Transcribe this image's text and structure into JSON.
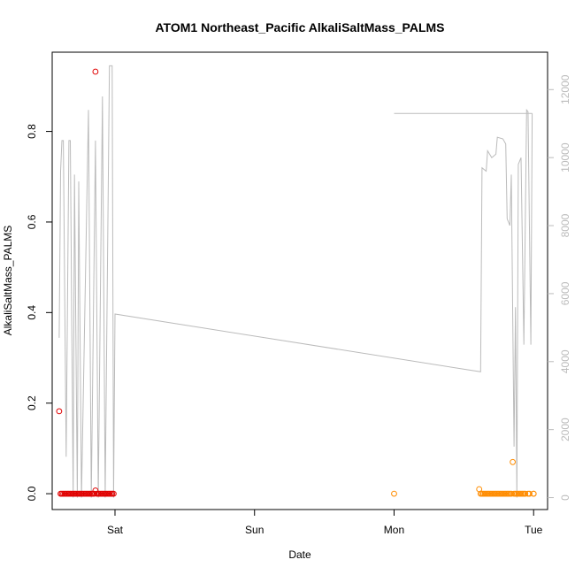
{
  "chart_data": {
    "type": "scatter",
    "title": "ATOM1 Northeast_Pacific AlkaliSaltMass_PALMS",
    "xlabel": "Date",
    "ylabel": "AlkaliSaltMass_PALMS",
    "x_axis": {
      "unit": "days",
      "range": [
        -0.45,
        3.1
      ],
      "ticks": [
        {
          "value": 0,
          "label": "Sat"
        },
        {
          "value": 1,
          "label": "Sun"
        },
        {
          "value": 2,
          "label": "Mon"
        },
        {
          "value": 3,
          "label": "Tue"
        }
      ]
    },
    "y_axis_left": {
      "range": [
        -0.035,
        0.975
      ],
      "ticks": [
        {
          "value": 0.0,
          "label": "0.0"
        },
        {
          "value": 0.2,
          "label": "0.2"
        },
        {
          "value": 0.4,
          "label": "0.4"
        },
        {
          "value": 0.6,
          "label": "0.6"
        },
        {
          "value": 0.8,
          "label": "0.8"
        }
      ]
    },
    "y_axis_right": {
      "range": [
        -350,
        13100
      ],
      "tick_color": "#bbbbbb",
      "ticks": [
        {
          "value": 0,
          "label": "0"
        },
        {
          "value": 2000,
          "label": "2000"
        },
        {
          "value": 4000,
          "label": "4000"
        },
        {
          "value": 6000,
          "label": "6000"
        },
        {
          "value": 8000,
          "label": "8000"
        },
        {
          "value": 10000,
          "label": "10000"
        },
        {
          "value": 12000,
          "label": "12000"
        }
      ]
    },
    "grid": false,
    "series": [
      {
        "color": "#e00000",
        "marker": "open-circle",
        "axis": "left",
        "points": [
          [
            -0.4,
            0.182
          ],
          [
            -0.39,
            0.0
          ],
          [
            -0.38,
            0.0
          ],
          [
            -0.37,
            0.0
          ],
          [
            -0.36,
            0.0
          ],
          [
            -0.35,
            0.0
          ],
          [
            -0.34,
            0.0
          ],
          [
            -0.33,
            0.0
          ],
          [
            -0.32,
            0.0
          ],
          [
            -0.31,
            0.0
          ],
          [
            -0.3,
            0.0
          ],
          [
            -0.29,
            0.0
          ],
          [
            -0.28,
            0.0
          ],
          [
            -0.27,
            0.0
          ],
          [
            -0.26,
            0.0
          ],
          [
            -0.25,
            0.0
          ],
          [
            -0.24,
            0.0
          ],
          [
            -0.23,
            0.0
          ],
          [
            -0.22,
            0.0
          ],
          [
            -0.21,
            0.0
          ],
          [
            -0.2,
            0.0
          ],
          [
            -0.19,
            0.0
          ],
          [
            -0.18,
            0.0
          ],
          [
            -0.17,
            0.0
          ],
          [
            -0.16,
            0.0
          ],
          [
            -0.15,
            0.0
          ],
          [
            -0.14,
            0.932
          ],
          [
            -0.14,
            0.007
          ],
          [
            -0.13,
            0.0
          ],
          [
            -0.12,
            0.0
          ],
          [
            -0.11,
            0.0
          ],
          [
            -0.1,
            0.0
          ],
          [
            -0.09,
            0.0
          ],
          [
            -0.08,
            0.0
          ],
          [
            -0.07,
            0.0
          ],
          [
            -0.06,
            0.0
          ],
          [
            -0.05,
            0.0
          ],
          [
            -0.04,
            0.0
          ],
          [
            -0.03,
            0.0
          ],
          [
            -0.02,
            0.0
          ],
          [
            -0.01,
            0.0
          ]
        ]
      },
      {
        "color": "#ff8c00",
        "marker": "open-circle",
        "axis": "left",
        "points": [
          [
            2.0,
            0.0
          ],
          [
            2.61,
            0.01
          ],
          [
            2.62,
            0.0
          ],
          [
            2.63,
            0.0
          ],
          [
            2.64,
            0.0
          ],
          [
            2.65,
            0.0
          ],
          [
            2.66,
            0.0
          ],
          [
            2.67,
            0.0
          ],
          [
            2.68,
            0.0
          ],
          [
            2.69,
            0.0
          ],
          [
            2.7,
            0.0
          ],
          [
            2.71,
            0.0
          ],
          [
            2.72,
            0.0
          ],
          [
            2.73,
            0.0
          ],
          [
            2.74,
            0.0
          ],
          [
            2.75,
            0.0
          ],
          [
            2.76,
            0.0
          ],
          [
            2.77,
            0.0
          ],
          [
            2.78,
            0.0
          ],
          [
            2.79,
            0.0
          ],
          [
            2.8,
            0.0
          ],
          [
            2.81,
            0.0
          ],
          [
            2.82,
            0.0
          ],
          [
            2.83,
            0.0
          ],
          [
            2.84,
            0.0
          ],
          [
            2.85,
            0.07
          ],
          [
            2.86,
            0.0
          ],
          [
            2.87,
            0.0
          ],
          [
            2.88,
            0.0
          ],
          [
            2.89,
            0.0
          ],
          [
            2.9,
            0.0
          ],
          [
            2.91,
            0.0
          ],
          [
            2.92,
            0.0
          ],
          [
            2.93,
            0.0
          ],
          [
            2.94,
            0.0
          ],
          [
            2.96,
            0.0
          ],
          [
            2.97,
            0.0
          ],
          [
            3.0,
            0.0
          ],
          [
            3.0,
            0.0
          ]
        ]
      },
      {
        "color": "#bbbbbb",
        "marker": "line",
        "axis": "right",
        "points": [
          [
            -0.4,
            4700
          ],
          [
            -0.39,
            9600
          ],
          [
            -0.38,
            10500
          ],
          [
            -0.37,
            10500
          ],
          [
            -0.35,
            1200
          ],
          [
            -0.33,
            10500
          ],
          [
            -0.32,
            10500
          ],
          [
            -0.3,
            0
          ],
          [
            -0.29,
            9500
          ],
          [
            -0.27,
            0
          ],
          [
            -0.26,
            9300
          ],
          [
            -0.24,
            0
          ],
          [
            -0.19,
            11400
          ],
          [
            -0.17,
            0
          ],
          [
            -0.14,
            10500
          ],
          [
            -0.12,
            0
          ],
          [
            -0.09,
            11800
          ],
          [
            -0.07,
            0
          ],
          [
            -0.04,
            12700
          ],
          [
            -0.02,
            12700
          ],
          [
            -0.01,
            0
          ],
          [
            0.0,
            5400
          ],
          [
            2.62,
            3700
          ],
          [
            2.63,
            9700
          ],
          [
            2.66,
            9600
          ],
          [
            2.67,
            10200
          ],
          [
            2.7,
            10000
          ],
          [
            2.73,
            10100
          ],
          [
            2.74,
            10600
          ],
          [
            2.78,
            10550
          ],
          [
            2.8,
            10400
          ],
          [
            2.81,
            8200
          ],
          [
            2.83,
            8000
          ],
          [
            2.84,
            9500
          ],
          [
            2.86,
            1500
          ],
          [
            2.87,
            5600
          ],
          [
            2.88,
            0
          ],
          [
            2.89,
            9800
          ],
          [
            2.91,
            10000
          ],
          [
            2.93,
            4500
          ],
          [
            2.95,
            11400
          ],
          [
            2.96,
            11350
          ],
          [
            2.98,
            4500
          ],
          [
            2.99,
            11300
          ]
        ]
      },
      {
        "color": "#bbbbbb",
        "marker": "line",
        "axis": "right",
        "points": [
          [
            2.0,
            11300
          ],
          [
            2.99,
            11300
          ]
        ]
      }
    ]
  }
}
